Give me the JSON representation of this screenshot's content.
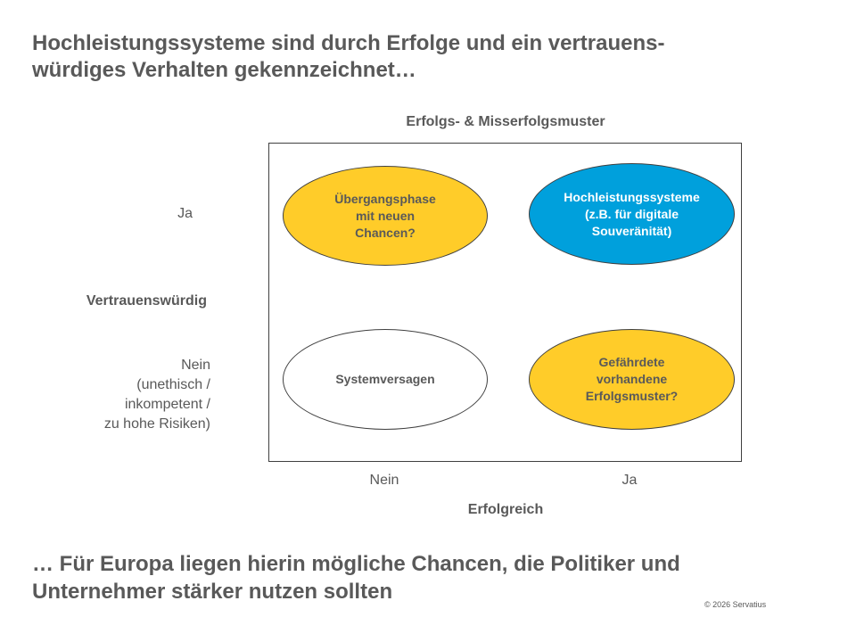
{
  "header": {
    "title_lines": [
      "Hochleistungssysteme sind durch Erfolge und ein vertrauens-",
      "würdiges Verhalten gekennzeichnet…"
    ]
  },
  "matrix": {
    "title": "Erfolgs- & Misserfolgsmuster",
    "y_axis": {
      "title": "Vertrauenswürdig",
      "top_label": "Ja",
      "bottom_label_lines": [
        "Nein",
        "(unethisch /",
        "inkompetent /",
        "zu hohe Risiken)"
      ]
    },
    "x_axis": {
      "title": "Erfolgreich",
      "left_label": "Nein",
      "right_label": "Ja"
    },
    "quadrants": {
      "top_left": {
        "lines": [
          "Übergangsphase",
          "mit neuen",
          "Chancen?"
        ],
        "color": "#FFCC29"
      },
      "top_right": {
        "lines": [
          "Hochleistungssysteme",
          "(z.B. für digitale",
          "Souveränität)"
        ],
        "color": "#00A0DC"
      },
      "bottom_left": {
        "lines": [
          "Systemversagen"
        ],
        "color": "#FFFFFF"
      },
      "bottom_right": {
        "lines": [
          "Gefährdete",
          "vorhandene",
          "Erfolgsmuster?"
        ],
        "color": "#FFCC29"
      }
    }
  },
  "footer": {
    "conclusion_lines": [
      "… Für Europa liegen hierin mögliche Chancen, die Politiker und",
      "Unternehmer stärker nutzen sollten"
    ],
    "copyright": "© 2026 Servatius"
  }
}
